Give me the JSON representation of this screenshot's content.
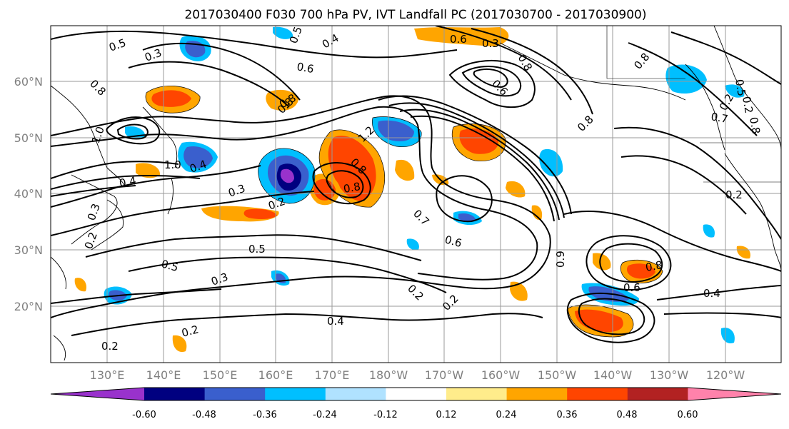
{
  "title": "2017030400 F030 700 hPa PV, IVT Landfall PC (2017030700 - 2017030900)",
  "lat_ticks": [
    "60°N",
    "50°N",
    "40°N",
    "30°N",
    "20°N"
  ],
  "lon_ticks": [
    "130°E",
    "140°E",
    "150°E",
    "160°E",
    "170°E",
    "180°W",
    "170°W",
    "160°W",
    "150°W",
    "140°W",
    "130°W",
    "120°W"
  ],
  "colorbar": {
    "ticks": [
      "-0.60",
      "-0.48",
      "-0.36",
      "-0.24",
      "-0.12",
      "0.12",
      "0.24",
      "0.36",
      "0.48",
      "0.60"
    ],
    "colors": [
      "#9932cc",
      "#000080",
      "#3a5fcd",
      "#00bfff",
      "#b0e2ff",
      "#ffffff",
      "#ffec8b",
      "#ffa500",
      "#ff4500",
      "#b22222",
      "#ff82ab"
    ]
  },
  "contour_labels": [
    "0.5",
    "0.3",
    "0.6",
    "0.5",
    "0.4",
    "0.6",
    "0.8",
    "0.8",
    "0.8",
    "0.6",
    "0.8",
    "0.8",
    "0.4",
    "1.0",
    "0.4",
    "0.3",
    "0.2",
    "0.8",
    "1.2",
    "0.8",
    "0.8",
    "0.7",
    "0.6",
    "0.8",
    "0.9",
    "0.2",
    "0.5",
    "0.5",
    "0.3",
    "0.4",
    "0.2",
    "0.2",
    "0.2",
    "0.2",
    "0.2",
    "0.6",
    "0.4",
    "1.0",
    "0.2",
    "0.3",
    "0.2",
    "0.3",
    "0.8",
    "0.5",
    "0.7"
  ]
}
